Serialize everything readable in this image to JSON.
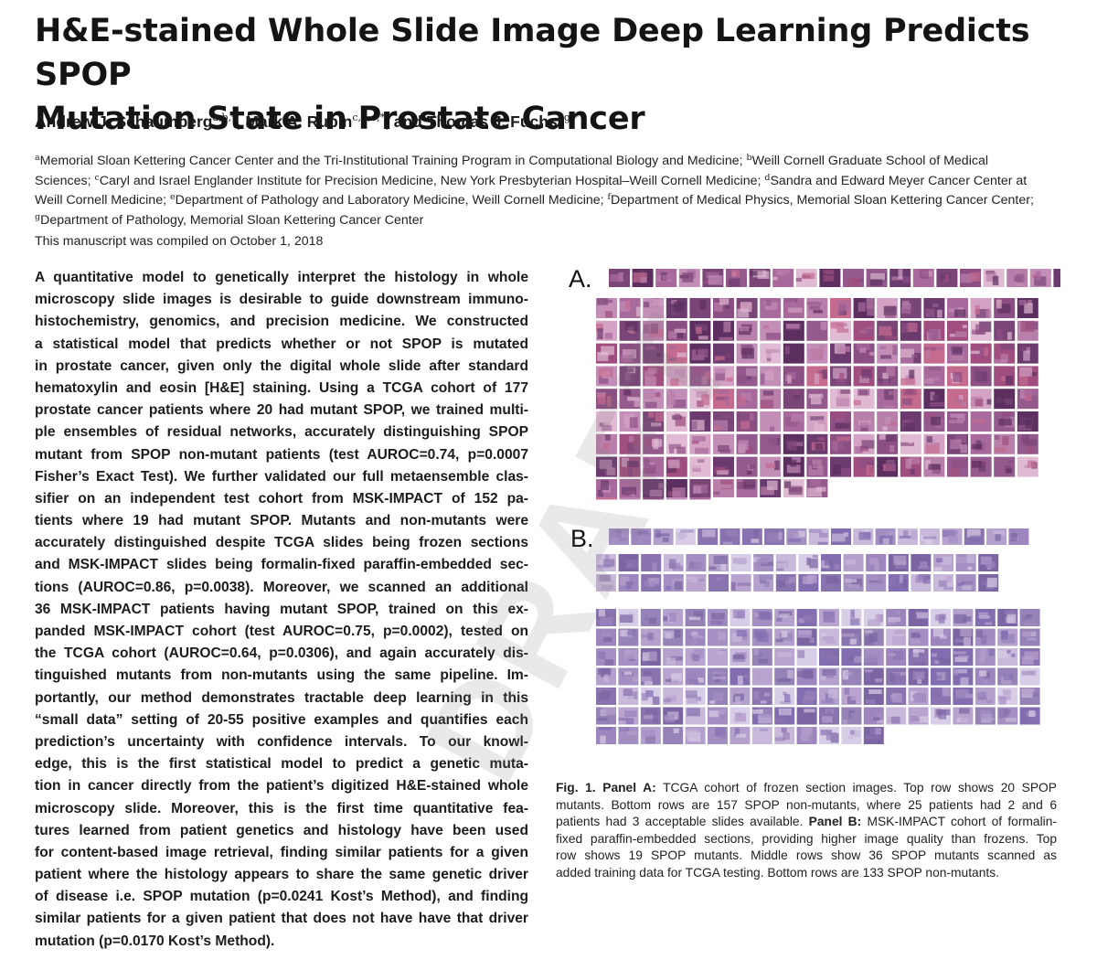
{
  "paper": {
    "title_line1": "H&E-stained Whole Slide Image Deep Learning Predicts SPOP",
    "title_line2": "Mutation State in Prostate Cancer",
    "authors": [
      {
        "name": "Andrew J. Schaumberg",
        "sup": "a,b,*",
        "sep": ", "
      },
      {
        "name": "Mark A. Rubin",
        "sup": "c,d,e,*",
        "sep": ", and "
      },
      {
        "name": "Thomas J. Fuchs",
        "sup": "f,g,*",
        "sep": ""
      }
    ],
    "affiliation_lines": [
      [
        {
          "sup": "a",
          "text": "Memorial Sloan Kettering Cancer Center and the Tri-Institutional Training Program in Computational Biology and Medicine; "
        },
        {
          "sup": "b",
          "text": "Weill Cornell Graduate School of Medical"
        }
      ],
      [
        {
          "sup": "",
          "text": "Sciences; "
        },
        {
          "sup": "c",
          "text": "Caryl and Israel Englander Institute for Precision Medicine, New York Presbyterian Hospital–Weill Cornell Medicine; "
        },
        {
          "sup": "d",
          "text": "Sandra and Edward Meyer Cancer Center at"
        }
      ],
      [
        {
          "sup": "",
          "text": "Weill Cornell Medicine; "
        },
        {
          "sup": "e",
          "text": "Department of Pathology and Laboratory Medicine, Weill Cornell Medicine; "
        },
        {
          "sup": "f",
          "text": "Department of Medical Physics, Memorial Sloan Kettering Cancer Center;"
        }
      ],
      [
        {
          "sup": "g",
          "text": "Department of Pathology, Memorial Sloan Kettering Cancer Center"
        }
      ]
    ],
    "compiled": "This manuscript was compiled on October 1, 2018",
    "abstract_lines": [
      "A quantitative model to genetically interpret the histology in whole",
      "microscopy slide images is desirable to guide downstream immuno-",
      "histochemistry, genomics, and precision medicine. We constructed",
      "a statistical model that predicts whether or not SPOP is mutated",
      "in prostate cancer, given only the digital whole slide after standard",
      "hematoxylin and eosin [H&E] staining. Using a TCGA cohort of 177",
      "prostate cancer patients where 20 had mutant SPOP, we trained multi-",
      "ple ensembles of residual networks, accurately distinguishing SPOP",
      "mutant from SPOP non-mutant patients (test AUROC=0.74, p=0.0007",
      "Fisher’s Exact Test). We further validated our full metaensemble clas-",
      "sifier on an independent test cohort from MSK-IMPACT of 152 pa-",
      "tients where 19 had mutant SPOP. Mutants and non-mutants were",
      "accurately distinguished despite TCGA slides being frozen sections",
      "and MSK-IMPACT slides being formalin-fixed paraffin-embedded sec-",
      "tions (AUROC=0.86, p=0.0038). Moreover, we scanned an additional",
      "36 MSK-IMPACT patients having mutant SPOP, trained on this ex-",
      "panded MSK-IMPACT cohort (test AUROC=0.75, p=0.0002), tested on",
      "the TCGA cohort (AUROC=0.64, p=0.0306), and again accurately dis-",
      "tinguished mutants from non-mutants using the same pipeline. Im-",
      "portantly, our method demonstrates tractable deep learning in this",
      "“small data” setting of 20-55 positive examples and quantifies each",
      "prediction’s uncertainty with confidence intervals. To our knowl-",
      "edge, this is the first statistical model to predict a genetic muta-",
      "tion in cancer directly from the patient’s digitized H&E-stained whole",
      "microscopy slide. Moreover, this is the first time quantitative fea-",
      "tures learned from patient genetics and histology have been used",
      "for content-based image retrieval, finding similar patients for a given",
      "patient where the histology appears to share the same genetic driver",
      "of disease i.e. SPOP mutation (p=0.0241 Kost’s Method), and finding",
      "similar patients for a given patient that does not have have that driver",
      "mutation (p=0.0170 Kost’s Method)."
    ],
    "figure": {
      "panel_a_label": "A.",
      "panel_b_label": "B.",
      "caption_lines": [
        [
          {
            "b": "Fig. 1. Panel A:"
          },
          {
            "t": " TCGA cohort of frozen section images. Top row shows 20 SPOP"
          }
        ],
        [
          {
            "t": "mutants. Bottom rows are 157 SPOP non-mutants, where 25 patients had 2 and 6"
          }
        ],
        [
          {
            "t": "patients had 3 acceptable slides available. "
          },
          {
            "b": "Panel B:"
          },
          {
            "t": " MSK-IMPACT cohort of formalin-"
          }
        ],
        [
          {
            "t": "fixed paraffin-embedded sections, providing higher image quality than frozens. Top"
          }
        ],
        [
          {
            "t": "row shows 19 SPOP mutants. Middle rows show 36 SPOP mutants scanned as"
          }
        ],
        [
          {
            "t": "added training data for TCGA testing. Bottom rows are 133 SPOP non-mutants."
          }
        ]
      ]
    },
    "watermark": "DRAFT"
  },
  "colors": {
    "panel_a_tiles": [
      "#6b3a6e",
      "#8c4f84",
      "#a86a9c",
      "#b97fab",
      "#d3a2c4",
      "#7a4678",
      "#955a8d",
      "#c28db7",
      "#5c2f60",
      "#e0b9d2",
      "#a04e7f",
      "#c46b8e"
    ],
    "panel_b_tiles": [
      "#8a74b0",
      "#9d86bd",
      "#b3a0cc",
      "#7b65a3",
      "#c8b9da",
      "#a48fc3",
      "#d8cde6",
      "#9582b6",
      "#b9a3cf",
      "#816db0"
    ]
  }
}
